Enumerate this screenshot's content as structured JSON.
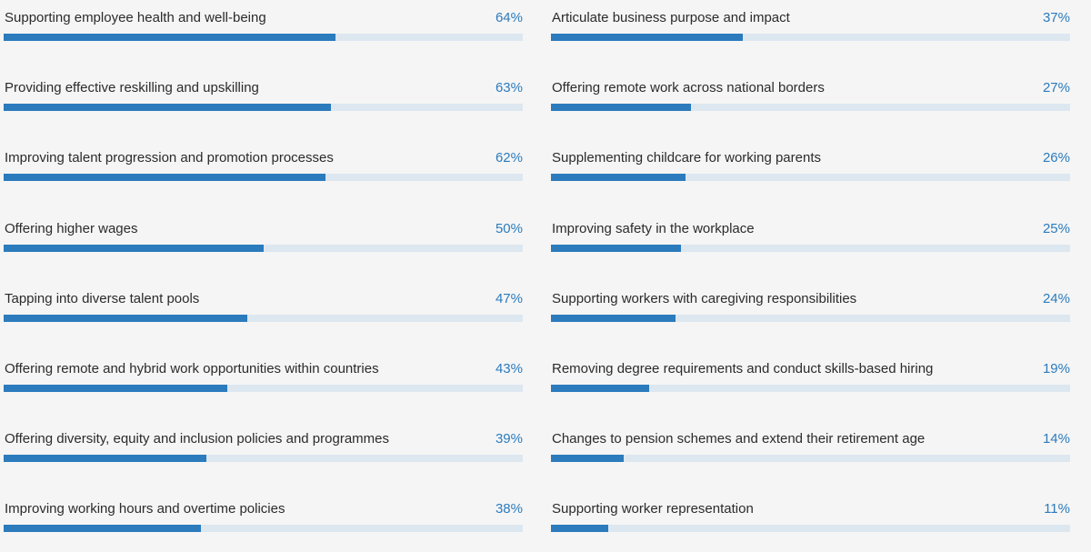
{
  "chart_data": {
    "type": "bar",
    "orientation": "horizontal",
    "columns": 2,
    "xlim": [
      0,
      100
    ],
    "unit": "%",
    "categories": [
      "Supporting employee health and well-being",
      "Providing effective reskilling and upskilling",
      "Improving talent progression and promotion processes",
      "Offering higher wages",
      "Tapping into diverse talent pools",
      "Offering remote and hybrid work opportunities within countries",
      "Offering diversity, equity and inclusion policies and programmes",
      "Improving working hours and overtime policies",
      "Articulate business purpose and impact",
      "Offering remote work across national borders",
      "Supplementing childcare for working parents",
      "Improving safety in the workplace",
      "Supporting workers with caregiving responsibilities",
      "Removing degree requirements and conduct skills-based hiring",
      "Changes to pension schemes and extend their retirement age",
      "Supporting worker representation"
    ],
    "values": [
      64,
      63,
      62,
      50,
      47,
      43,
      39,
      38,
      37,
      27,
      26,
      25,
      24,
      19,
      14,
      11
    ],
    "value_labels": [
      "64%",
      "63%",
      "62%",
      "50%",
      "47%",
      "43%",
      "39%",
      "38%",
      "37%",
      "27%",
      "26%",
      "25%",
      "24%",
      "19%",
      "14%",
      "11%"
    ],
    "colors": {
      "bar": "#2b7bbd",
      "track": "#dde7f0",
      "label": "#2b2b2b",
      "value": "#2b7bbd"
    }
  }
}
